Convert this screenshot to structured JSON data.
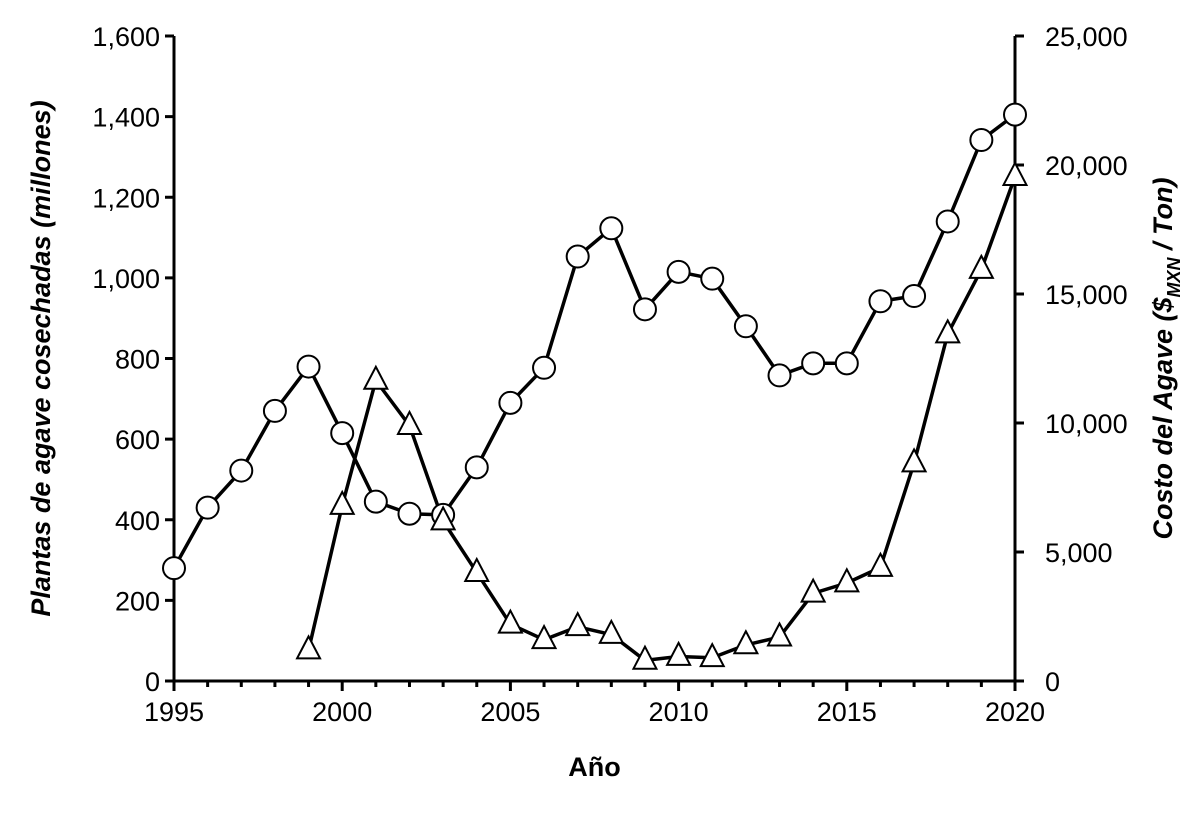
{
  "chart_data": {
    "type": "line",
    "xlabel": "Año",
    "ylabel_left": "Plantas de agave cosechadas (millones)",
    "ylabel_right": {
      "main": "Costo del Agave ($",
      "subscript": "MXN",
      "suffix": " / Ton)"
    },
    "x": [
      1995,
      1996,
      1997,
      1998,
      1999,
      2000,
      2001,
      2002,
      2003,
      2004,
      2005,
      2006,
      2007,
      2008,
      2009,
      2010,
      2011,
      2012,
      2013,
      2014,
      2015,
      2016,
      2017,
      2018,
      2019,
      2020
    ],
    "xlim": [
      1995,
      2020
    ],
    "x_ticks": [
      1995,
      2000,
      2005,
      2010,
      2015,
      2020
    ],
    "x_tick_labels": [
      "1995",
      "2000",
      "2005",
      "2010",
      "2015",
      "2020"
    ],
    "ylim_left": [
      0,
      1600
    ],
    "y_ticks_left": [
      0,
      200,
      400,
      600,
      800,
      1000,
      1200,
      1400,
      1600
    ],
    "y_tick_labels_left": [
      "0",
      "200",
      "400",
      "600",
      "800",
      "1,000",
      "1,200",
      "1,400",
      "1,600"
    ],
    "ylim_right": [
      0,
      25000
    ],
    "y_ticks_right": [
      0,
      5000,
      10000,
      15000,
      20000,
      25000
    ],
    "y_tick_labels_right": [
      "0",
      "5,000",
      "10,000",
      "15,000",
      "20,000",
      "25,000"
    ],
    "grid": false,
    "legend": "none",
    "series": [
      {
        "axis": "left",
        "marker": "circle",
        "color": "#000000",
        "x": [
          1995,
          1996,
          1997,
          1998,
          1999,
          2000,
          2001,
          2002,
          2003,
          2004,
          2005,
          2006,
          2007,
          2008,
          2009,
          2010,
          2011,
          2012,
          2013,
          2014,
          2015,
          2016,
          2017,
          2018,
          2019,
          2020
        ],
        "values": [
          280,
          430,
          522,
          670,
          780,
          615,
          445,
          415,
          412,
          530,
          690,
          777,
          1053,
          1123,
          922,
          1015,
          998,
          880,
          758,
          788,
          788,
          942,
          955,
          1140,
          1342,
          1405
        ]
      },
      {
        "axis": "right",
        "marker": "triangle",
        "color": "#000000",
        "x": [
          1999,
          2000,
          2001,
          2002,
          2003,
          2004,
          2005,
          2006,
          2007,
          2008,
          2009,
          2010,
          2011,
          2012,
          2013,
          2014,
          2015,
          2016,
          2017,
          2018,
          2019,
          2020
        ],
        "values": [
          1200,
          6800,
          11650,
          9900,
          6200,
          4200,
          2200,
          1600,
          2100,
          1800,
          800,
          950,
          900,
          1400,
          1700,
          3400,
          3800,
          4400,
          8450,
          13450,
          15950,
          19550
        ]
      }
    ]
  }
}
